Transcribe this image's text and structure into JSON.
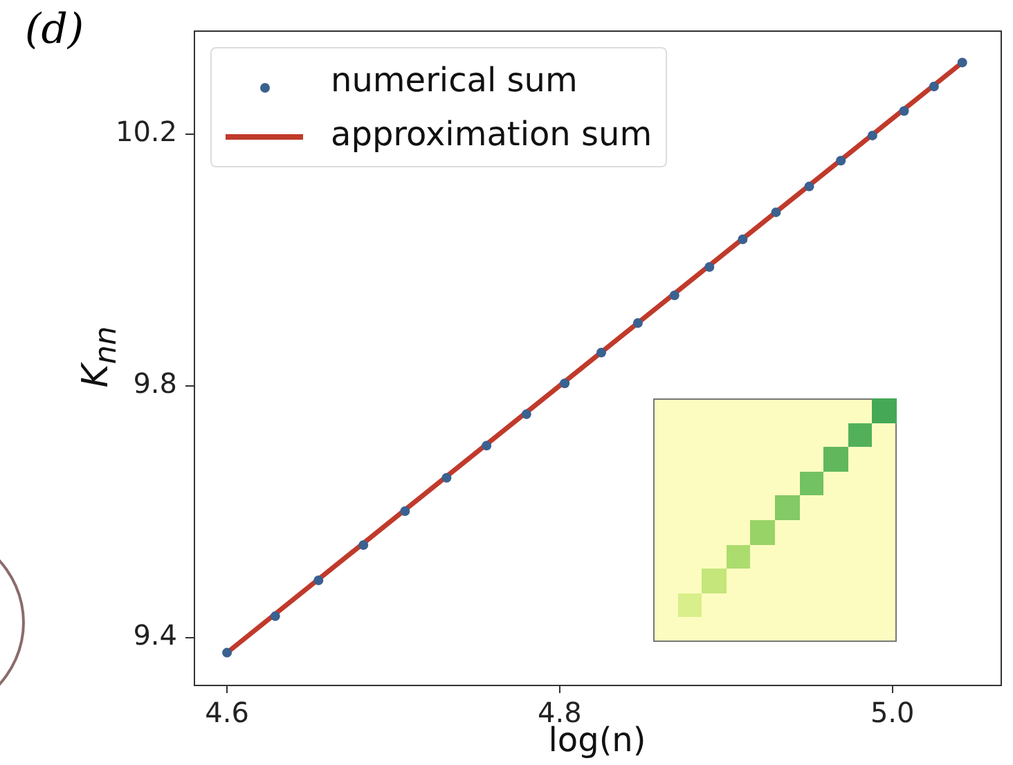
{
  "chart_data": {
    "type": "scatter",
    "title": "(d)",
    "xlabel": "log(n)",
    "ylabel": "K$_{nn}$",
    "xlim": [
      4.58,
      5.065
    ],
    "xticks": [
      4.6,
      4.8,
      {
        "value": 5,
        "label": "5.0"
      }
    ],
    "ylim": [
      9.325,
      10.365
    ],
    "yticks": [
      9.4,
      9.8,
      10.2
    ],
    "grid": false,
    "legend": "top left",
    "series": [
      {
        "name": "numerical sum",
        "type": "scatter",
        "marker": "circle",
        "color": "#3a6190",
        "x": [
          4.6,
          4.629,
          4.655,
          4.682,
          4.707,
          4.732,
          4.756,
          4.78,
          4.803,
          4.825,
          4.847,
          4.869,
          4.89,
          4.91,
          4.93,
          4.95,
          4.969,
          4.988,
          5.007,
          5.025,
          5.042
        ],
        "values": [
          9.376,
          9.434,
          9.491,
          9.547,
          9.601,
          9.654,
          9.705,
          9.755,
          9.804,
          9.853,
          9.9,
          9.944,
          9.989,
          10.033,
          10.076,
          10.117,
          10.158,
          10.198,
          10.237,
          10.276,
          10.314
        ]
      },
      {
        "name": "approximation sum",
        "type": "line",
        "color": "#c03a2b",
        "x": [
          4.6,
          5.042
        ],
        "values": [
          9.376,
          10.314
        ]
      }
    ]
  }
}
